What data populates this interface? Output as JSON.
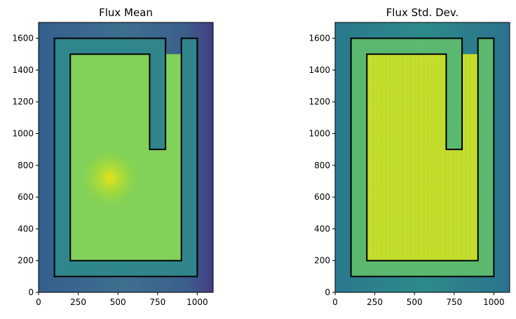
{
  "chart_data": [
    {
      "type": "heatmap",
      "title": "Flux Mean",
      "xlabel": "",
      "ylabel": "",
      "xlim": [
        0,
        1100
      ],
      "ylim": [
        0,
        1700
      ],
      "xticks": [
        0,
        250,
        500,
        750,
        1000
      ],
      "yticks": [
        0,
        200,
        400,
        600,
        800,
        1000,
        1200,
        1400,
        1600
      ],
      "colormap": "viridis",
      "colors": {
        "background": "#3b5f8c",
        "inner": "#82d15a",
        "hotspot": "#e7e419",
        "band": "#2f8a8b",
        "outline": "#000000"
      },
      "outline_polygons": [
        [
          [
            100,
            100
          ],
          [
            1000,
            100
          ],
          [
            1000,
            1600
          ],
          [
            900,
            1600
          ],
          [
            900,
            100
          ]
        ],
        [
          [
            100,
            100
          ],
          [
            100,
            1600
          ],
          [
            800,
            1600
          ],
          [
            800,
            900
          ],
          [
            700,
            900
          ],
          [
            700,
            1600
          ]
        ],
        [
          [
            200,
            200
          ],
          [
            900,
            200
          ],
          [
            900,
            1500
          ],
          [
            700,
            1500
          ]
        ],
        [
          [
            200,
            200
          ],
          [
            200,
            1500
          ],
          [
            700,
            1500
          ],
          [
            700,
            900
          ],
          [
            800,
            900
          ],
          [
            800,
            1500
          ]
        ]
      ],
      "hotspot": {
        "x": 450,
        "y": 720
      }
    },
    {
      "type": "heatmap",
      "title": "Flux Std. Dev.",
      "xlabel": "",
      "ylabel": "",
      "xlim": [
        0,
        1100
      ],
      "ylim": [
        0,
        1700
      ],
      "xticks": [
        0,
        250,
        500,
        750,
        1000
      ],
      "yticks": [
        0,
        200,
        400,
        600,
        800,
        1000,
        1200,
        1400,
        1600
      ],
      "colormap": "viridis",
      "colors": {
        "background": "#2e8a8a",
        "inner": "#c3dc2c",
        "band": "#5fbf6b",
        "outline": "#000000"
      },
      "outline_polygons": [
        [
          [
            100,
            100
          ],
          [
            1000,
            100
          ],
          [
            1000,
            1600
          ],
          [
            900,
            1600
          ],
          [
            900,
            100
          ]
        ],
        [
          [
            100,
            100
          ],
          [
            100,
            1600
          ],
          [
            800,
            1600
          ],
          [
            800,
            900
          ],
          [
            700,
            900
          ],
          [
            700,
            1600
          ]
        ],
        [
          [
            200,
            200
          ],
          [
            900,
            200
          ],
          [
            900,
            1500
          ],
          [
            700,
            1500
          ]
        ],
        [
          [
            200,
            200
          ],
          [
            200,
            1500
          ],
          [
            700,
            1500
          ],
          [
            700,
            900
          ],
          [
            800,
            900
          ],
          [
            800,
            1500
          ]
        ]
      ]
    }
  ]
}
